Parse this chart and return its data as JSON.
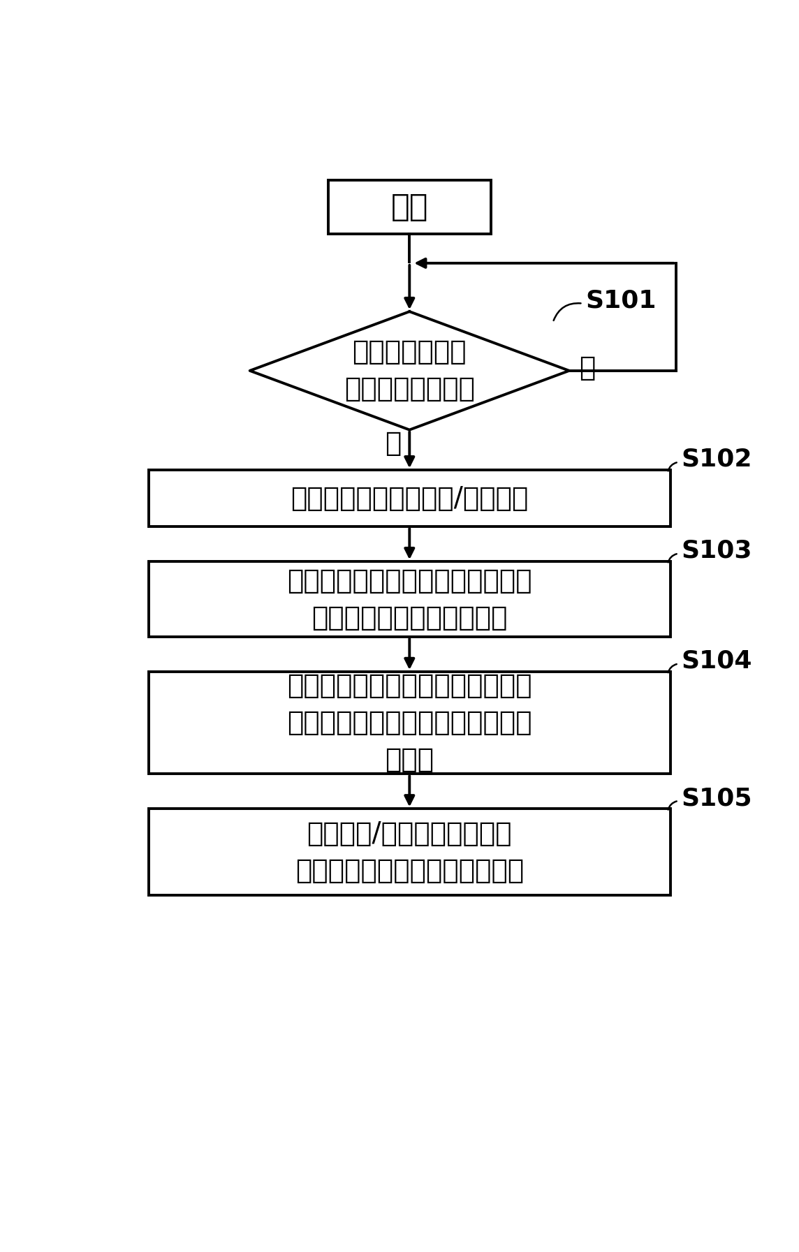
{
  "bg_color": "#ffffff",
  "line_color": "#000000",
  "text_color": "#000000",
  "font_size_main": 28,
  "font_size_step": 26,
  "start_text": "开始",
  "diamond_text": "判断是否获取到\n主动放电启动指令",
  "diamond_label": "S101",
  "diamond_no": "否",
  "diamond_yes": "是",
  "box2_text": "获取开通信号以及开通/关断信号",
  "box2_label": "S102",
  "box3_text": "根据开通信号控制上桥臂和下桥臂\n中的一个桥臂维持开通状态",
  "box3_label": "S103",
  "box4_text": "控制另一个桥臂对应的驱动电路停\n止驱动相应的功率半导体器件导通\n与关断",
  "box4_label": "S104",
  "box5_text": "根据开通/关断信号控制上述\n另一个桥臂交替进行开通与关断",
  "box5_label": "S105",
  "lw": 2.8
}
